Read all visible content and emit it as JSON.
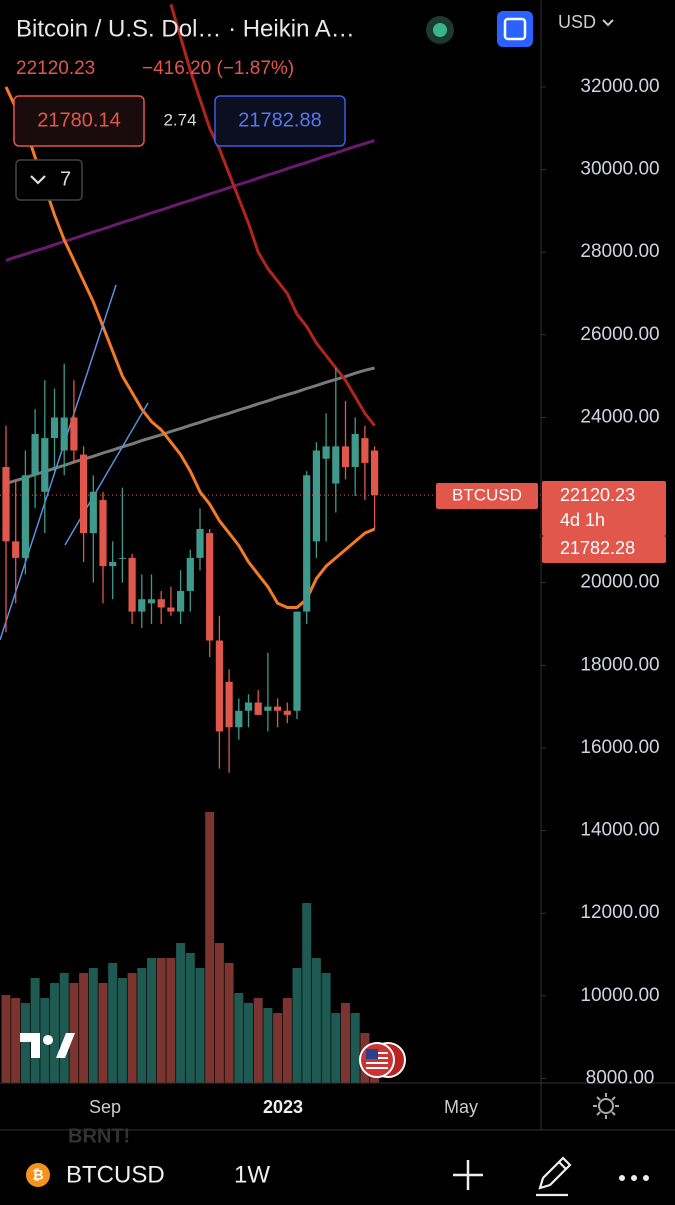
{
  "header": {
    "title": "Bitcoin / U.S. Dol… · Heikin A…",
    "change": "−416.20 (−1.87%)",
    "bid": "21780.14",
    "spread": "2.74",
    "ask": "21782.88",
    "indicators": "7",
    "currency": "USD"
  },
  "chart_data": {
    "type": "candlestick",
    "open": [
      22800,
      21000,
      20600,
      22600,
      22200,
      23500,
      23200,
      24000,
      23100,
      21200,
      22000,
      20400,
      20600,
      20600,
      19300,
      19500,
      19600,
      19400,
      19300,
      19800,
      20600,
      21200,
      18600,
      17600,
      16500,
      16900,
      17100,
      16900,
      17000,
      16900,
      16900,
      19300,
      21000,
      23000,
      22400,
      23300,
      22800,
      23500,
      23200
    ],
    "high": [
      23800,
      22500,
      23200,
      24200,
      24900,
      24700,
      25300,
      24900,
      23300,
      22600,
      22200,
      21000,
      22300,
      20700,
      20200,
      20200,
      19800,
      19900,
      20300,
      20800,
      21800,
      21300,
      19200,
      17900,
      17200,
      17300,
      17400,
      18300,
      17200,
      17100,
      19300,
      22700,
      23400,
      24100,
      25200,
      24400,
      24000,
      23800,
      23300
    ],
    "low": [
      18800,
      19500,
      20200,
      21800,
      21200,
      22700,
      22600,
      22900,
      20500,
      20000,
      19500,
      19600,
      20000,
      19000,
      18900,
      19000,
      19000,
      19200,
      19000,
      19300,
      20300,
      18200,
      15500,
      15400,
      16200,
      16500,
      16800,
      16400,
      16500,
      16600,
      16700,
      19000,
      20600,
      21000,
      21700,
      22500,
      22100,
      22000,
      21300
    ],
    "close": [
      21000,
      20600,
      22600,
      23600,
      23500,
      24000,
      24000,
      23200,
      21200,
      22200,
      20400,
      20500,
      20600,
      19300,
      19600,
      19600,
      19400,
      19300,
      19800,
      20600,
      21300,
      18600,
      16400,
      16500,
      16900,
      17100,
      16800,
      17000,
      16900,
      16800,
      19300,
      22600,
      23200,
      23300,
      23300,
      22800,
      23600,
      22900,
      22120.23
    ],
    "volume": [
      88,
      85,
      80,
      105,
      85,
      100,
      110,
      100,
      110,
      115,
      100,
      120,
      105,
      110,
      115,
      125,
      125,
      125,
      140,
      130,
      115,
      271,
      140,
      120,
      90,
      80,
      85,
      75,
      70,
      85,
      115,
      180,
      125,
      110,
      70,
      80,
      70,
      50,
      30
    ],
    "up_color": "#3f9a8c",
    "down_color": "#e2574c",
    "up_volume_color": "#1f5a52",
    "down_volume_color": "#7c3430",
    "series": [
      {
        "color": "#6b1a70",
        "values": [
          27800,
          27880,
          27950,
          28030,
          28100,
          28180,
          28260,
          28330,
          28410,
          28490,
          28560,
          28640,
          28720,
          28790,
          28870,
          28950,
          29020,
          29100,
          29180,
          29250,
          29330,
          29410,
          29480,
          29560,
          29640,
          29710,
          29790,
          29870,
          29940,
          30020,
          30100,
          30170,
          30250,
          30330,
          30400,
          30480,
          30560,
          30630,
          30700
        ]
      },
      {
        "color": "#7a7a7a",
        "values": [
          22400,
          22470,
          22540,
          22620,
          22690,
          22770,
          22840,
          22920,
          22990,
          23060,
          23140,
          23210,
          23290,
          23360,
          23440,
          23510,
          23580,
          23660,
          23730,
          23810,
          23880,
          23960,
          24030,
          24100,
          24180,
          24250,
          24330,
          24400,
          24480,
          24550,
          24620,
          24700,
          24770,
          24850,
          24920,
          24990,
          25070,
          25140,
          25200
        ]
      },
      {
        "color": "#f47a26",
        "values": [
          32000,
          31500,
          31000,
          30300,
          29600,
          28900,
          28300,
          27800,
          27300,
          26800,
          26200,
          25600,
          25000,
          24600,
          24200,
          23900,
          23700,
          23400,
          23100,
          22700,
          22200,
          21900,
          21500,
          21200,
          20900,
          20500,
          20200,
          19900,
          19500,
          19400,
          19400,
          19600,
          20100,
          20400,
          20600,
          20800,
          21000,
          21200,
          21300
        ]
      },
      {
        "color": "#b3241b",
        "values": [
          null,
          null,
          null,
          null,
          null,
          null,
          null,
          null,
          null,
          null,
          null,
          null,
          null,
          null,
          null,
          null,
          null,
          34000,
          33200,
          32400,
          31700,
          31000,
          30500,
          29900,
          29300,
          28700,
          28000,
          27600,
          27300,
          27000,
          26500,
          26200,
          25800,
          25500,
          25200,
          24900,
          24500,
          24100,
          23800
        ]
      }
    ],
    "ylim": [
      7890,
      34104
    ],
    "yticks": [
      {
        "value": 8000,
        "label": "8000.00"
      },
      {
        "value": 10000,
        "label": "10000.00"
      },
      {
        "value": 12000,
        "label": "12000.00"
      },
      {
        "value": 14000,
        "label": "14000.00"
      },
      {
        "value": 16000,
        "label": "16000.00"
      },
      {
        "value": 18000,
        "label": "18000.00"
      },
      {
        "value": 20000,
        "label": "20000.00"
      },
      {
        "value": 22000,
        "label": "22000.00"
      },
      {
        "value": 24000,
        "label": "24000.00"
      },
      {
        "value": 26000,
        "label": "26000.00"
      },
      {
        "value": 28000,
        "label": "28000.00"
      },
      {
        "value": 30000,
        "label": "30000.00"
      },
      {
        "value": 32000,
        "label": "32000.00"
      }
    ],
    "x_labels": [
      "Sep",
      "2023",
      "May"
    ]
  },
  "price_labels": {
    "symbol": "BTCUSD",
    "countdown": "4d 1h",
    "ma": "21782.28"
  },
  "footer": {
    "ghost": "BRNT!",
    "symbol": "BTCUSD",
    "interval": "1W"
  }
}
